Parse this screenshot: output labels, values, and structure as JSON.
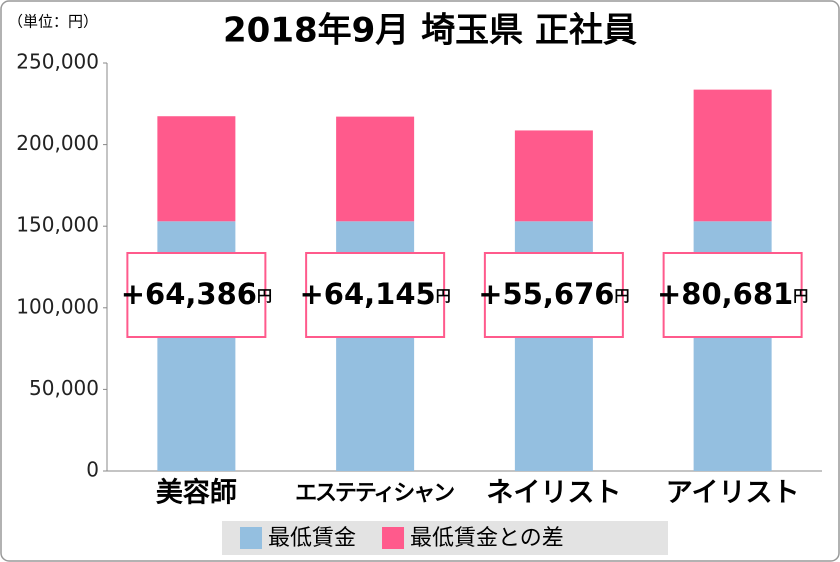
{
  "chart_data": {
    "type": "stacked_bar",
    "title": "2018年9月 埼玉県 正社員",
    "unit": "（単位：円）",
    "categories": [
      "美容師",
      "エステティシャン",
      "ネイリスト",
      "アイリスト"
    ],
    "series": [
      {
        "name": "最低賃金",
        "color": "#94bfe0",
        "values": [
          153000,
          153000,
          153000,
          153000
        ]
      },
      {
        "name": "最低賃金との差",
        "color": "#ff5a8c",
        "values": [
          64386,
          64145,
          55676,
          80681
        ],
        "value_labels": [
          "+64,386円",
          "+64,145円",
          "+55,676円",
          "+80,681円"
        ]
      }
    ],
    "ylim": [
      0,
      250000
    ],
    "yticks": [
      0,
      {
        "value": 50000,
        "label": "50,000"
      },
      {
        "value": 100000,
        "label": "100,000"
      },
      {
        "value": 150000,
        "label": "150,000"
      },
      {
        "value": 200000,
        "label": "200,000"
      },
      {
        "value": 250000,
        "label": "250,000"
      }
    ],
    "grid": false,
    "legend": "bottom"
  }
}
